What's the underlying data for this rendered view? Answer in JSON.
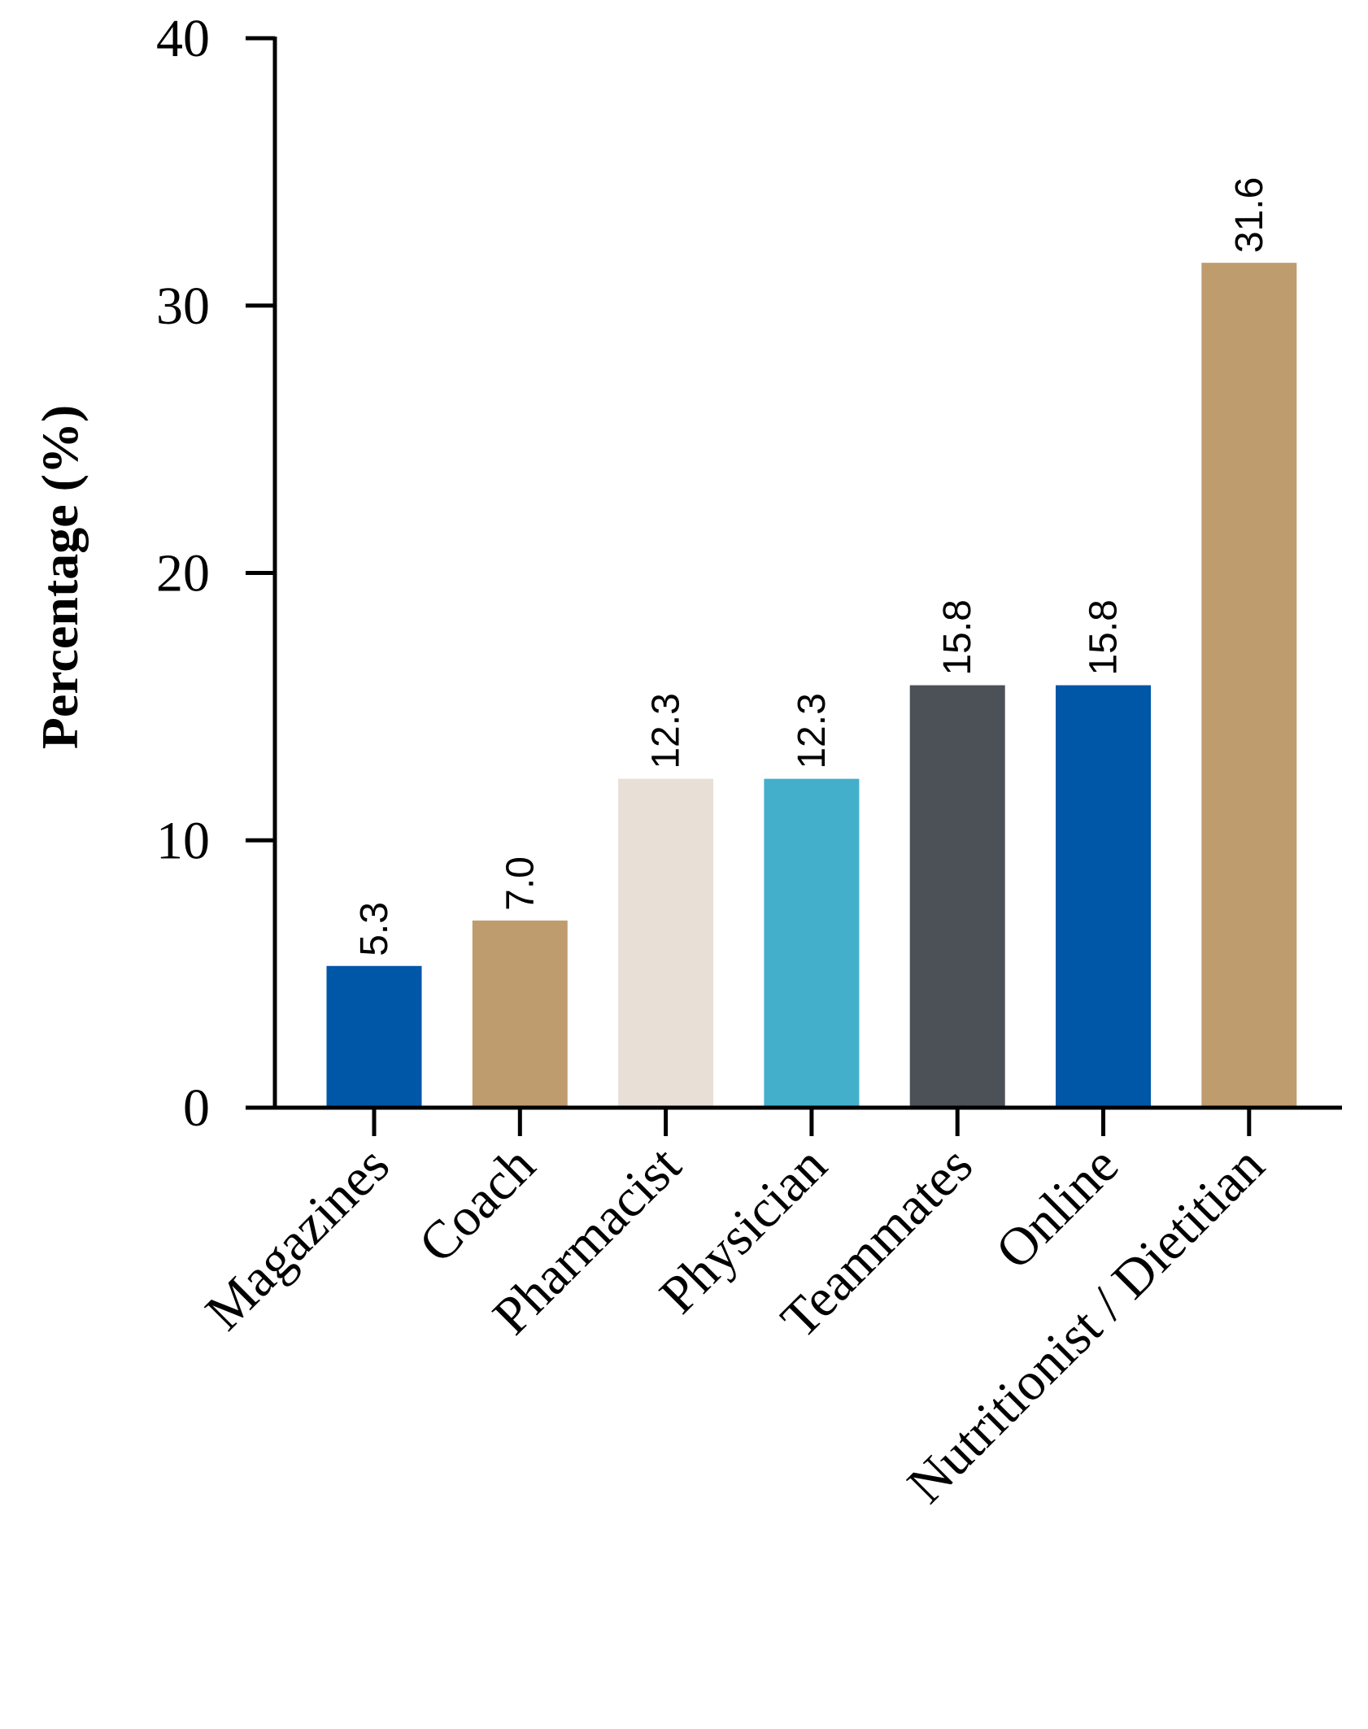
{
  "chart_data": {
    "type": "bar",
    "title": "",
    "xlabel": "",
    "ylabel": "Percentage (%)",
    "ylim": [
      0,
      40
    ],
    "yticks": [
      0,
      10,
      20,
      30,
      40
    ],
    "grid": false,
    "categories": [
      "Magazines",
      "Coach",
      "Pharmacist",
      "Physician",
      "Teammates",
      "Online",
      "Nutritionist / Dietitian"
    ],
    "values": [
      5.3,
      7.0,
      12.3,
      12.3,
      15.8,
      15.8,
      31.6
    ],
    "data_labels": [
      "5.3",
      "7.0",
      "12.3",
      "12.3",
      "15.8",
      "15.8",
      "31.6"
    ],
    "colors": [
      "#0057a8",
      "#bf9c6e",
      "#e8dfd6",
      "#43afcb",
      "#4c5157",
      "#0057a8",
      "#bf9c6e"
    ]
  }
}
